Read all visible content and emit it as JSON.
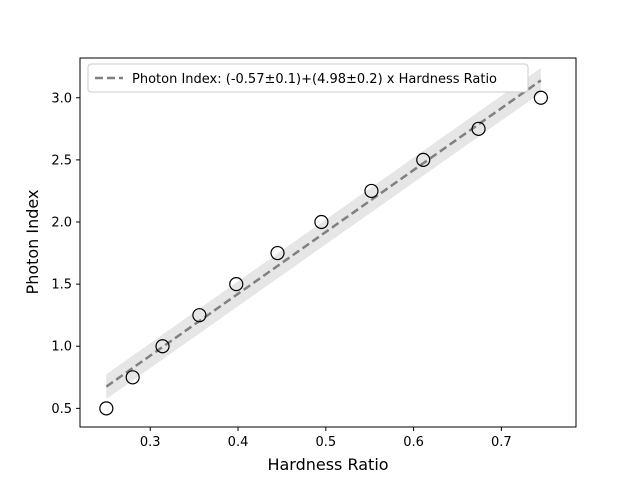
{
  "chart_data": {
    "type": "scatter",
    "xlabel": "Hardness Ratio",
    "ylabel": "Photon Index",
    "xlim": [
      0.22,
      0.785
    ],
    "ylim": [
      0.35,
      3.32
    ],
    "xticks": [
      0.3,
      0.4,
      0.5,
      0.6,
      0.7
    ],
    "xtick_labels": [
      "0.3",
      "0.4",
      "0.5",
      "0.6",
      "0.7"
    ],
    "yticks": [
      0.5,
      1.0,
      1.5,
      2.0,
      2.5,
      3.0
    ],
    "ytick_labels": [
      "0.5",
      "1.0",
      "1.5",
      "2.0",
      "2.5",
      "3.0"
    ],
    "grid": false,
    "legend_position": "top-left",
    "series": [
      {
        "marker": "open-circle",
        "color": "#000000",
        "points": [
          {
            "x": 0.25,
            "y": 0.5
          },
          {
            "x": 0.28,
            "y": 0.75
          },
          {
            "x": 0.314,
            "y": 1.0
          },
          {
            "x": 0.356,
            "y": 1.25
          },
          {
            "x": 0.398,
            "y": 1.5
          },
          {
            "x": 0.445,
            "y": 1.75
          },
          {
            "x": 0.495,
            "y": 2.0
          },
          {
            "x": 0.552,
            "y": 2.25
          },
          {
            "x": 0.611,
            "y": 2.5
          },
          {
            "x": 0.674,
            "y": 2.75
          },
          {
            "x": 0.745,
            "y": 3.0
          }
        ]
      }
    ],
    "fit": {
      "label": "Photon Index: (-0.57±0.1)+(4.98±0.2) x Hardness Ratio",
      "intercept": -0.57,
      "slope": 4.98,
      "x_range": [
        0.25,
        0.745
      ],
      "band_halfwidth": 0.1,
      "line_color": "#808080",
      "band_color": "#e6e6e6",
      "linestyle": "dashed"
    }
  }
}
